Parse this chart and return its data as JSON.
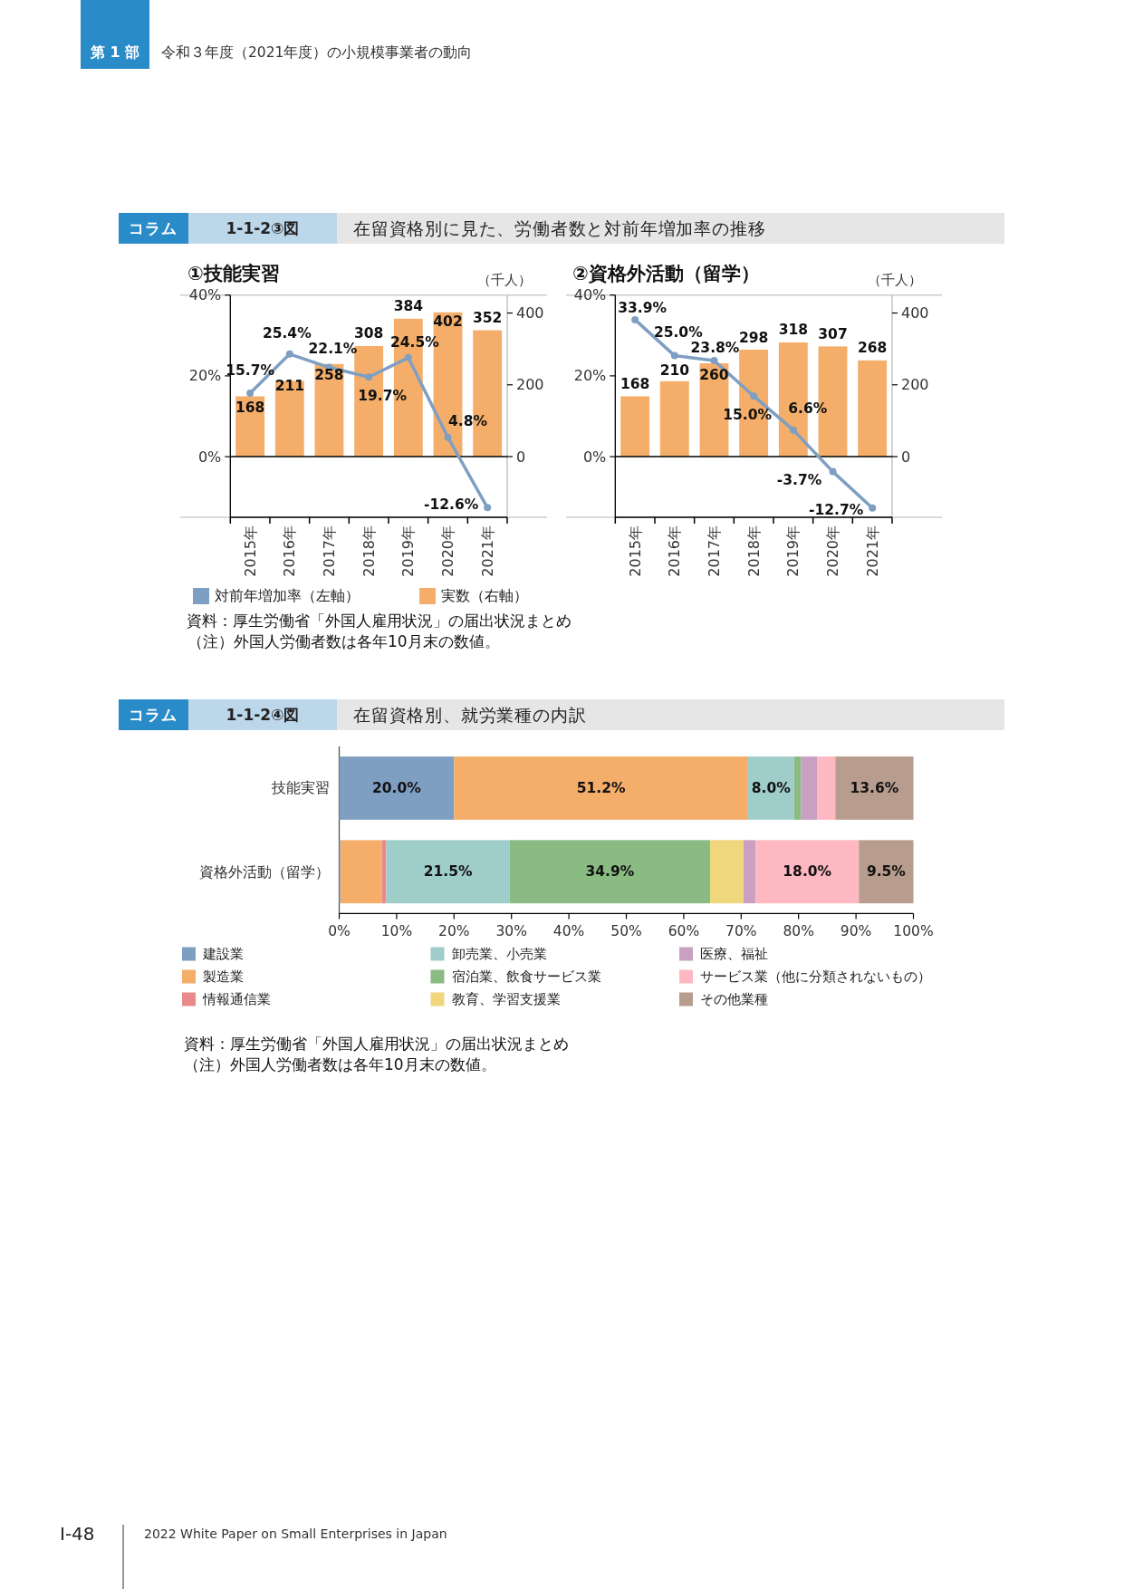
{
  "chart_data": [
    {
      "type": "bar",
      "title": "①技能実習",
      "y2label": "（千人）",
      "categories": [
        "2015年",
        "2016年",
        "2017年",
        "2018年",
        "2019年",
        "2020年",
        "2021年"
      ],
      "series": [
        {
          "name": "対前年増加率（左軸）",
          "type": "line",
          "color": "#7f9fc2",
          "values": [
            15.7,
            25.4,
            22.1,
            19.7,
            24.5,
            4.8,
            -12.6
          ],
          "value_labels": [
            "15.7%",
            "25.4%",
            "22.1%",
            "19.7%",
            "24.5%",
            "4.8%",
            "-12.6%"
          ]
        },
        {
          "name": "実数（右軸）",
          "type": "bar",
          "axis": "y2",
          "color": "#f4ae6a",
          "values": [
            168,
            211,
            258,
            308,
            384,
            402,
            352
          ],
          "value_labels": [
            "168",
            "211",
            "258",
            "308",
            "384",
            "402",
            "352"
          ]
        }
      ],
      "ylim": [
        -15,
        40
      ],
      "yticks": [
        {
          "value": 0,
          "label": "0%"
        },
        {
          "value": 20,
          "label": "20%"
        },
        {
          "value": 40,
          "label": "40%"
        }
      ],
      "y2lim": [
        -169,
        450
      ],
      "y2ticks": [
        0,
        200,
        400
      ],
      "ref_lines": [
        {
          "axis": "y",
          "value": 0,
          "color": "#000000"
        }
      ],
      "marker": "circle",
      "line_style": "solid",
      "legend": "bottom",
      "annotations": [
        "第 1 部",
        "令和３年度（2021年度）の小規模事業者の動向",
        "コラム",
        "1-1-2③図",
        "在留資格別に見た、労働者数と対前年増加率の推移",
        "資料：厚生労働省「外国人雇用状況」の届出状況まとめ",
        "（注）外国人労働者数は各年10月末の数値。"
      ]
    },
    {
      "type": "bar",
      "title": "②資格外活動（留学）",
      "y2label": "（千人）",
      "categories": [
        "2015年",
        "2016年",
        "2017年",
        "2018年",
        "2019年",
        "2020年",
        "2021年"
      ],
      "series": [
        {
          "type": "line",
          "color": "#7f9fc2",
          "values": [
            33.9,
            25.0,
            23.8,
            15.0,
            6.6,
            -3.7,
            -12.7
          ],
          "value_labels": [
            "33.9%",
            "25.0%",
            "23.8%",
            "15.0%",
            "6.6%",
            "-3.7%",
            "-12.7%"
          ]
        },
        {
          "type": "bar",
          "axis": "y2",
          "color": "#f4ae6a",
          "values": [
            168,
            210,
            260,
            298,
            318,
            307,
            268
          ],
          "value_labels": [
            "168",
            "210",
            "260",
            "298",
            "318",
            "307",
            "268"
          ]
        }
      ],
      "ylim": [
        -15,
        40
      ],
      "yticks": [
        {
          "value": 0,
          "label": "0%"
        },
        {
          "value": 20,
          "label": "20%"
        },
        {
          "value": 40,
          "label": "40%"
        }
      ],
      "y2lim": [
        -169,
        450
      ],
      "y2ticks": [
        0,
        200,
        400
      ],
      "ref_lines": [
        {
          "axis": "y",
          "value": 0,
          "color": "#000000"
        }
      ],
      "marker": "circle",
      "line_style": "solid"
    },
    {
      "type": "bar",
      "orientation": "horizontal",
      "stacked": true,
      "categories": [
        "技能実習",
        "資格外活動（留学）"
      ],
      "series": [
        {
          "name": "建設業",
          "color": "#7f9fc2",
          "values": [
            20.0,
            0.2
          ],
          "value_labels": [
            "20.0%",
            null
          ]
        },
        {
          "name": "製造業",
          "color": "#f4ae6a",
          "values": [
            51.2,
            7.2
          ],
          "value_labels": [
            "51.2%",
            null
          ]
        },
        {
          "name": "情報通信業",
          "color": "#e88a8a",
          "values": [
            null,
            0.8
          ],
          "value_labels": [
            null,
            null
          ]
        },
        {
          "name": "卸売業、小売業",
          "color": "#9fcdc9",
          "values": [
            8.0,
            21.5
          ],
          "value_labels": [
            "8.0%",
            "21.5%"
          ]
        },
        {
          "name": "宿泊業、飲食サービス業",
          "color": "#89bb83",
          "values": [
            1.2,
            34.9
          ],
          "value_labels": [
            null,
            "34.9%"
          ]
        },
        {
          "name": "教育、学習支援業",
          "color": "#f0d67c",
          "values": [
            null,
            5.8
          ],
          "value_labels": [
            null,
            null
          ]
        },
        {
          "name": "医療、福祉",
          "color": "#c9a0c0",
          "values": [
            2.8,
            2.1
          ],
          "value_labels": [
            null,
            null
          ]
        },
        {
          "name": "サービス業（他に分類されないもの）",
          "color": "#fdb8c1",
          "values": [
            3.2,
            18.0
          ],
          "value_labels": [
            null,
            "18.0%"
          ]
        },
        {
          "name": "その他業種",
          "color": "#b89d8e",
          "values": [
            13.6,
            9.5
          ],
          "value_labels": [
            "13.6%",
            "9.5%"
          ]
        }
      ],
      "xlim": [
        0,
        100
      ],
      "xticks": [
        {
          "value": 0,
          "label": "0%"
        },
        {
          "value": 10,
          "label": "10%"
        },
        {
          "value": 20,
          "label": "20%"
        },
        {
          "value": 30,
          "label": "30%"
        },
        {
          "value": 40,
          "label": "40%"
        },
        {
          "value": 50,
          "label": "50%"
        },
        {
          "value": 60,
          "label": "60%"
        },
        {
          "value": 70,
          "label": "70%"
        },
        {
          "value": 80,
          "label": "80%"
        },
        {
          "value": 90,
          "label": "90%"
        },
        {
          "value": 100,
          "label": "100%"
        }
      ],
      "legend": "bottom",
      "annotations": [
        "コラム",
        "1-1-2④図",
        "在留資格別、就労業種の内訳",
        "資料：厚生労働省「外国人雇用状況」の届出状況まとめ",
        "（注）外国人労働者数は各年10月末の数値。",
        "I-48",
        "2022 White Paper on Small Enterprises in Japan"
      ]
    }
  ]
}
